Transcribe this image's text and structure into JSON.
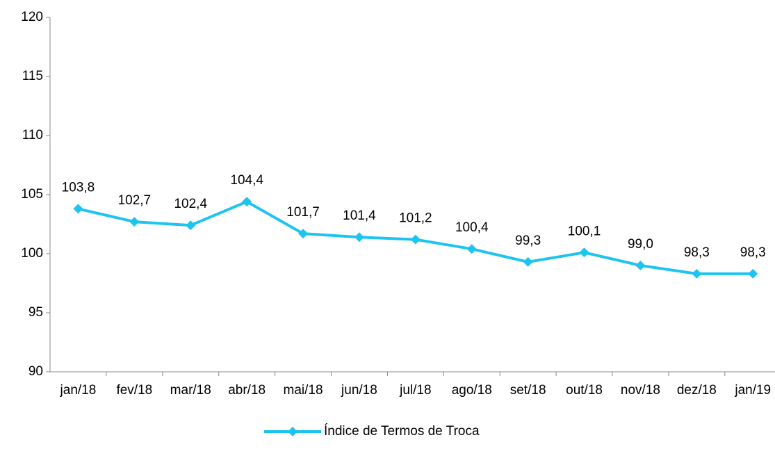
{
  "chart_data": {
    "type": "line",
    "categories": [
      "jan/18",
      "fev/18",
      "mar/18",
      "abr/18",
      "mai/18",
      "jun/18",
      "jul/18",
      "ago/18",
      "set/18",
      "out/18",
      "nov/18",
      "dez/18",
      "jan/19"
    ],
    "series": [
      {
        "name": "Índice de Termos de Troca",
        "color": "#1ec4f0",
        "values": [
          103.8,
          102.7,
          102.4,
          104.4,
          101.7,
          101.4,
          101.2,
          100.4,
          99.3,
          100.1,
          99.0,
          98.3,
          98.3
        ],
        "value_labels": [
          "103,8",
          "102,7",
          "102,4",
          "104,4",
          "101,7",
          "101,4",
          "101,2",
          "100,4",
          "99,3",
          "100,1",
          "99,0",
          "98,3",
          "98,3"
        ]
      }
    ],
    "ylim": [
      90,
      120
    ],
    "yticks": [
      90,
      95,
      100,
      105,
      110,
      115,
      120
    ],
    "grid": false,
    "legend": "bottom"
  }
}
